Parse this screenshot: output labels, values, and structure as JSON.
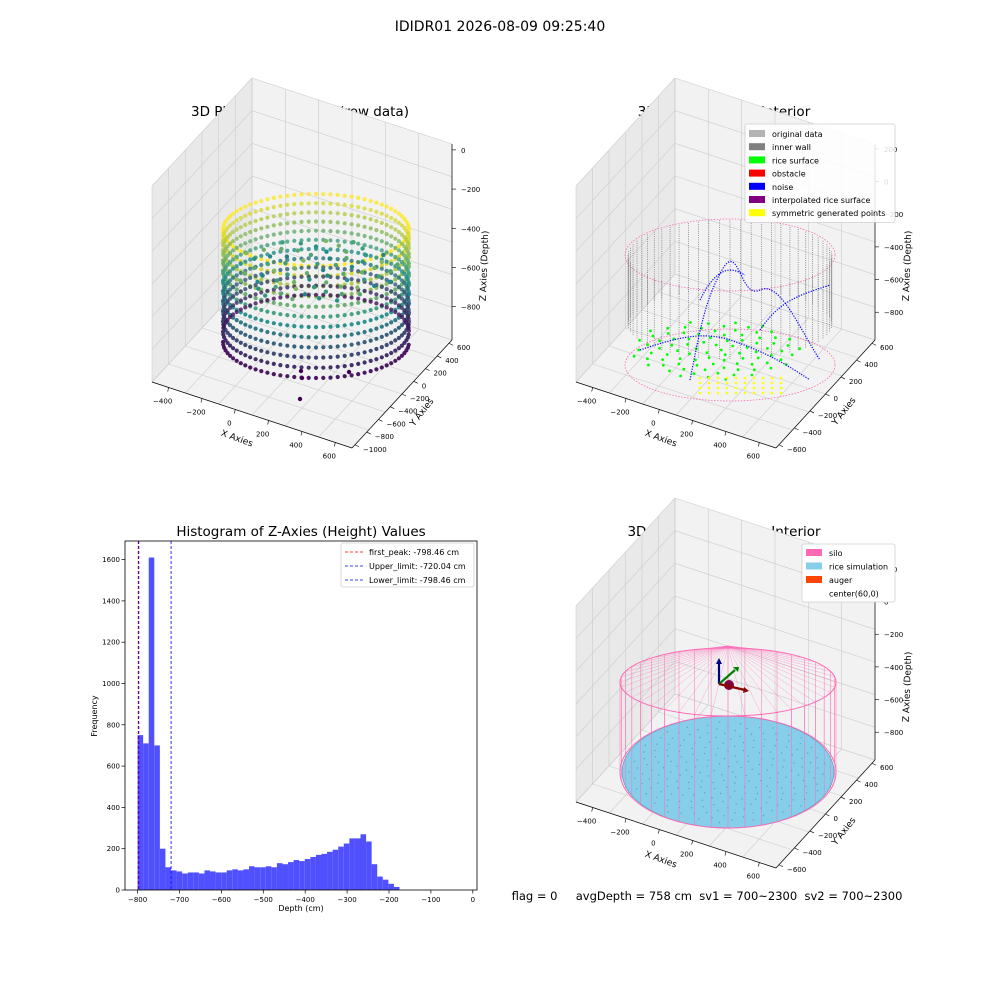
{
  "suptitle": "IDIDR01 2026-08-09 09:25:40",
  "colors": {
    "pane": "#f2f2f2",
    "grid": "#cccccc",
    "viridis_low": "#440154",
    "viridis_mid": "#21918c",
    "viridis_high": "#fde725",
    "wall": "#808080",
    "rice": "#00ff00",
    "noise": "#0000ff",
    "silo": "#ff69b4",
    "sim": "#87ceeb",
    "auger": "#ff4500",
    "hist": "#5050ff",
    "peak_line": "#ff0000",
    "limit_line": "#0000ff"
  },
  "status_text": "flag = 0     avgDepth = 758 cm  sv1 = 700~2300  sv2 = 700~2300",
  "chart_data": [
    {
      "type": "scatter",
      "title": "3D Plot of Silo Interior(row data)",
      "xlabel": "X Axies",
      "ylabel": "Y Axies",
      "zlabel": "Z Axies (Depth)",
      "x_ticks": [
        "−400",
        "−200",
        "0",
        "200",
        "400",
        "600"
      ],
      "y_ticks": [
        "−1000",
        "−800",
        "−600",
        "−400",
        "−200",
        "0",
        "200",
        "400",
        "600"
      ],
      "z_ticks": [
        "0",
        "−200",
        "−400",
        "−600",
        "−800"
      ],
      "colormap": "viridis"
    },
    {
      "type": "scatter",
      "title": "3D classify of Silo Interior",
      "xlabel": "X Axies",
      "ylabel": "Y Axies",
      "zlabel": "Z Axies (Depth)",
      "x_ticks": [
        "−400",
        "−200",
        "0",
        "200",
        "400",
        "600"
      ],
      "y_ticks": [
        "−600",
        "−400",
        "−200",
        "0",
        "200",
        "400",
        "600"
      ],
      "z_ticks": [
        "200",
        "0",
        "−200",
        "−400",
        "−600",
        "−800"
      ],
      "legend": [
        {
          "label": "original data",
          "color": "#b3b3b3"
        },
        {
          "label": "inner wall",
          "color": "#808080"
        },
        {
          "label": "rice surface",
          "color": "#00ff00"
        },
        {
          "label": "obstacle",
          "color": "#ff0000"
        },
        {
          "label": "noise",
          "color": "#0000ff"
        },
        {
          "label": "interpolated rice surface",
          "color": "#800080"
        },
        {
          "label": "symmetric generated points",
          "color": "#ffff00"
        }
      ],
      "legend_position": "top-right"
    },
    {
      "type": "bar",
      "title": "Histogram of Z-Axies (Height) Values",
      "xlabel": "Depth (cm)",
      "ylabel": "Frequency",
      "xlim": [
        -830,
        10
      ],
      "ylim": [
        0,
        1690
      ],
      "x_ticks": [
        -800,
        -700,
        -600,
        -500,
        -400,
        -300,
        -200,
        -100,
        0
      ],
      "x_tick_labels": [
        "−800",
        "−700",
        "−600",
        "−500",
        "−400",
        "−300",
        "−200",
        "−100",
        "0"
      ],
      "y_ticks": [
        0,
        200,
        400,
        600,
        800,
        1000,
        1200,
        1400,
        1600
      ],
      "bin_start": -800,
      "bin_width": 13.3,
      "values": [
        750,
        710,
        1610,
        700,
        200,
        110,
        95,
        90,
        80,
        85,
        85,
        80,
        95,
        90,
        85,
        85,
        95,
        100,
        95,
        100,
        115,
        110,
        110,
        115,
        110,
        130,
        125,
        135,
        145,
        140,
        150,
        160,
        170,
        175,
        185,
        195,
        210,
        225,
        250,
        250,
        270,
        235,
        125,
        65,
        50,
        30,
        15
      ],
      "lines": [
        {
          "label": "first_peak: -798.46 cm",
          "x": -798.46,
          "color": "#ff0000"
        },
        {
          "label": "Upper_limit: -720.04 cm",
          "x": -720.04,
          "color": "#0000ff"
        },
        {
          "label": "Lower_limit: -798.46 cm",
          "x": -798.46,
          "color": "#0000ff"
        }
      ],
      "legend_position": "top-right"
    },
    {
      "type": "scatter",
      "title": "3D simulation of Silo Interior",
      "xlabel": "X Axies",
      "ylabel": "Y Axies",
      "zlabel": "Z Axies (Depth)",
      "x_ticks": [
        "−400",
        "−200",
        "0",
        "200",
        "400",
        "600"
      ],
      "y_ticks": [
        "−600",
        "−400",
        "−200",
        "0",
        "200",
        "400",
        "600"
      ],
      "z_ticks": [
        "200",
        "0",
        "−200",
        "−400",
        "−600",
        "−800"
      ],
      "legend": [
        {
          "label": "silo",
          "color": "#ff69b4"
        },
        {
          "label": "rice simulation",
          "color": "#87ceeb"
        },
        {
          "label": "auger",
          "color": "#ff4500"
        },
        {
          "label": "center(60,0)",
          "color": "#ffffff"
        }
      ],
      "legend_position": "top-right"
    }
  ]
}
